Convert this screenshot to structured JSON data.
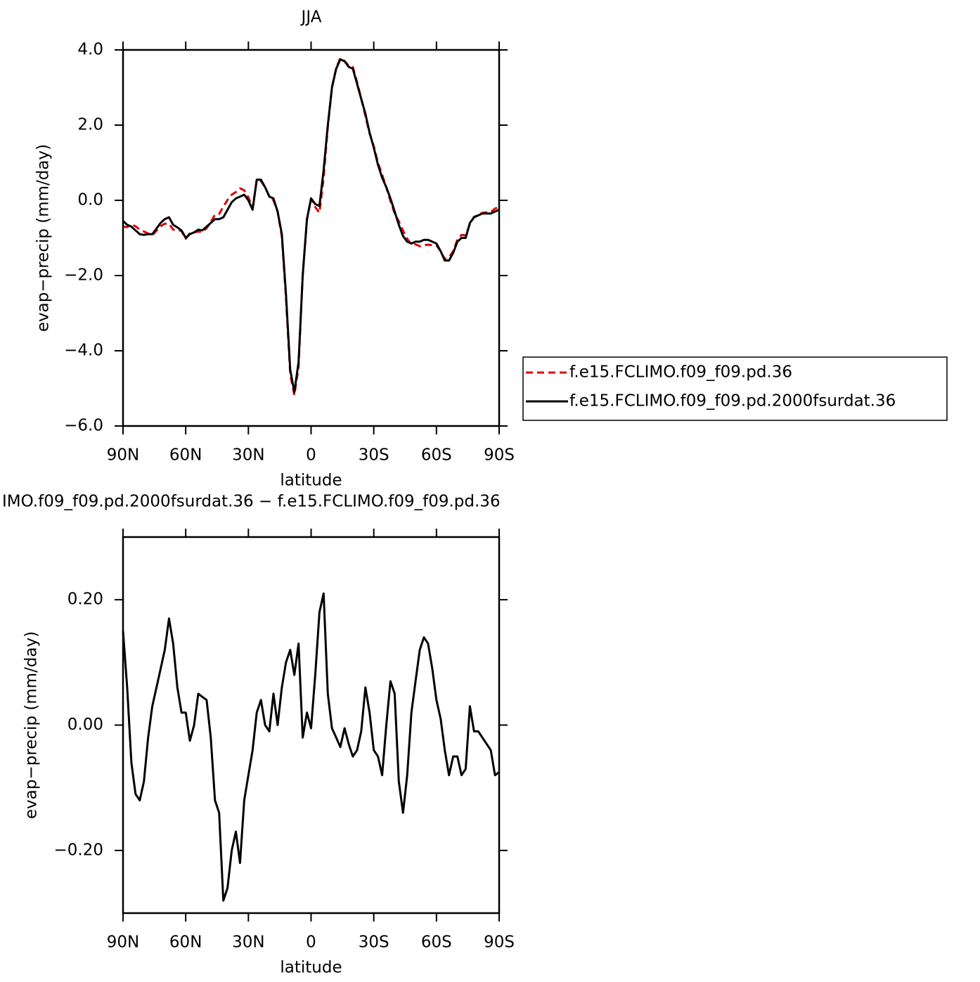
{
  "chart_data": [
    {
      "type": "line",
      "title": "JJA",
      "x_label": "latitude",
      "y_label": "evap−precip (mm/day)",
      "x": [
        90,
        88,
        86,
        84,
        82,
        80,
        78,
        76,
        74,
        72,
        70,
        68,
        66,
        64,
        62,
        60,
        58,
        56,
        54,
        52,
        50,
        48,
        46,
        44,
        42,
        40,
        38,
        36,
        34,
        32,
        30,
        28,
        26,
        24,
        22,
        20,
        18,
        16,
        14,
        12,
        10,
        8,
        6,
        4,
        2,
        0,
        -2,
        -4,
        -6,
        -8,
        -10,
        -12,
        -14,
        -16,
        -18,
        -20,
        -22,
        -24,
        -26,
        -28,
        -30,
        -32,
        -34,
        -36,
        -38,
        -40,
        -42,
        -44,
        -46,
        -48,
        -50,
        -52,
        -54,
        -56,
        -58,
        -60,
        -62,
        -64,
        -66,
        -68,
        -70,
        -72,
        -74,
        -76,
        -78,
        -80,
        -82,
        -84,
        -86,
        -88,
        -90
      ],
      "xlim": [
        90,
        -90
      ],
      "xticks": [
        {
          "value": 90,
          "label": "90N"
        },
        {
          "value": 60,
          "label": "60N"
        },
        {
          "value": 30,
          "label": "30N"
        },
        0,
        {
          "value": -30,
          "label": "30S"
        },
        {
          "value": -60,
          "label": "60S"
        },
        {
          "value": -90,
          "label": "90S"
        }
      ],
      "ylim": [
        -6,
        4
      ],
      "yticks": [
        {
          "value": -6,
          "label": "−6.0"
        },
        {
          "value": -4,
          "label": "−4.0"
        },
        {
          "value": -2,
          "label": "−2.0"
        },
        {
          "value": 0,
          "label": "0.0"
        },
        {
          "value": 2,
          "label": "2.0"
        },
        {
          "value": 4,
          "label": "4.0"
        }
      ],
      "legend": "right",
      "series": [
        {
          "name": "f.e15.FCLIMO.f09_f09.pd.36",
          "color": "#e00000",
          "dashed": true,
          "values": [
            -0.7,
            -0.71,
            -0.64,
            -0.69,
            -0.78,
            -0.83,
            -0.88,
            -0.93,
            -0.81,
            -0.69,
            -0.62,
            -0.62,
            -0.78,
            -0.78,
            -0.82,
            -1.02,
            -0.875,
            -0.85,
            -0.83,
            -0.845,
            -0.74,
            -0.58,
            -0.38,
            -0.36,
            -0.17,
            0.01,
            0.15,
            0.22,
            0.32,
            0.27,
            0.08,
            -0.21,
            0.53,
            0.51,
            0.35,
            0.11,
            0.0,
            -0.3,
            -0.96,
            -2.6,
            -4.62,
            -5.18,
            -4.43,
            -1.98,
            -0.52,
            0.055,
            -0.18,
            -0.33,
            0.59,
            1.95,
            3.005,
            3.52,
            3.785,
            3.705,
            3.58,
            3.55,
            3.14,
            2.71,
            2.24,
            1.78,
            1.44,
            1.0,
            0.68,
            0.35,
            -0.02,
            -0.35,
            -0.56,
            -0.81,
            -1.02,
            -1.17,
            -1.17,
            -1.22,
            -1.19,
            -1.18,
            -1.19,
            -1.19,
            -1.36,
            -1.56,
            -1.52,
            -1.35,
            -1.05,
            -0.92,
            -0.93,
            -0.63,
            -0.44,
            -0.39,
            -0.33,
            -0.32,
            -0.31,
            -0.22,
            -0.175
          ]
        },
        {
          "name": "f.e15.FCLIMO.f09_f09.pd.2000fsurdat.36",
          "color": "#000000",
          "dashed": false,
          "values": [
            -0.55,
            -0.65,
            -0.7,
            -0.8,
            -0.9,
            -0.92,
            -0.9,
            -0.9,
            -0.75,
            -0.6,
            -0.5,
            -0.45,
            -0.65,
            -0.72,
            -0.8,
            -1.0,
            -0.9,
            -0.85,
            -0.78,
            -0.8,
            -0.7,
            -0.6,
            -0.5,
            -0.5,
            -0.45,
            -0.25,
            -0.05,
            0.05,
            0.1,
            0.15,
            0.0,
            -0.25,
            0.55,
            0.55,
            0.35,
            0.1,
            0.05,
            -0.3,
            -0.9,
            -2.5,
            -4.5,
            -5.1,
            -4.3,
            -2.0,
            -0.5,
            0.05,
            -0.1,
            -0.15,
            0.8,
            2.0,
            3.0,
            3.5,
            3.75,
            3.7,
            3.55,
            3.5,
            3.1,
            2.7,
            2.3,
            1.8,
            1.4,
            0.95,
            0.6,
            0.35,
            0.05,
            -0.3,
            -0.65,
            -0.95,
            -1.1,
            -1.15,
            -1.1,
            -1.1,
            -1.05,
            -1.05,
            -1.1,
            -1.15,
            -1.35,
            -1.6,
            -1.6,
            -1.4,
            -1.1,
            -1.0,
            -1.0,
            -0.6,
            -0.45,
            -0.4,
            -0.35,
            -0.35,
            -0.35,
            -0.3,
            -0.25
          ]
        }
      ]
    },
    {
      "type": "line",
      "title": "IMO.f09_f09.pd.2000fsurdat.36 − f.e15.FCLIMO.f09_f09.pd.36",
      "x_label": "latitude",
      "y_label": "evap−precip (mm/day)",
      "x": [
        90,
        88,
        86,
        84,
        82,
        80,
        78,
        76,
        74,
        72,
        70,
        68,
        66,
        64,
        62,
        60,
        58,
        56,
        54,
        52,
        50,
        48,
        46,
        44,
        42,
        40,
        38,
        36,
        34,
        32,
        30,
        28,
        26,
        24,
        22,
        20,
        18,
        16,
        14,
        12,
        10,
        8,
        6,
        4,
        2,
        0,
        -2,
        -4,
        -6,
        -8,
        -10,
        -12,
        -14,
        -16,
        -18,
        -20,
        -22,
        -24,
        -26,
        -28,
        -30,
        -32,
        -34,
        -36,
        -38,
        -40,
        -42,
        -44,
        -46,
        -48,
        -50,
        -52,
        -54,
        -56,
        -58,
        -60,
        -62,
        -64,
        -66,
        -68,
        -70,
        -72,
        -74,
        -76,
        -78,
        -80,
        -82,
        -84,
        -86,
        -88,
        -90
      ],
      "xlim": [
        90,
        -90
      ],
      "xticks": [
        {
          "value": 90,
          "label": "90N"
        },
        {
          "value": 60,
          "label": "60N"
        },
        {
          "value": 30,
          "label": "30N"
        },
        0,
        {
          "value": -30,
          "label": "30S"
        },
        {
          "value": -60,
          "label": "60S"
        },
        {
          "value": -90,
          "label": "90S"
        }
      ],
      "ylim": [
        -0.3,
        0.3
      ],
      "yticks": [
        {
          "value": -0.2,
          "label": "−0.20"
        },
        {
          "value": 0,
          "label": "0.00"
        },
        {
          "value": 0.2,
          "label": "0.20"
        }
      ],
      "series": [
        {
          "color": "#000000",
          "dashed": false,
          "values": [
            0.15,
            0.06,
            -0.06,
            -0.11,
            -0.12,
            -0.09,
            -0.02,
            0.03,
            0.06,
            0.09,
            0.12,
            0.17,
            0.13,
            0.06,
            0.02,
            0.02,
            -0.025,
            0.0,
            0.05,
            0.045,
            0.04,
            -0.02,
            -0.12,
            -0.14,
            -0.28,
            -0.26,
            -0.2,
            -0.17,
            -0.22,
            -0.12,
            -0.08,
            -0.04,
            0.02,
            0.04,
            0.0,
            -0.01,
            0.05,
            0.0,
            0.06,
            0.1,
            0.12,
            0.08,
            0.13,
            -0.02,
            0.02,
            -0.005,
            0.08,
            0.18,
            0.21,
            0.05,
            -0.005,
            -0.02,
            -0.035,
            -0.005,
            -0.03,
            -0.05,
            -0.04,
            -0.01,
            0.06,
            0.02,
            -0.04,
            -0.05,
            -0.08,
            0.0,
            0.07,
            0.05,
            -0.09,
            -0.14,
            -0.08,
            0.02,
            0.07,
            0.12,
            0.14,
            0.13,
            0.09,
            0.04,
            0.01,
            -0.04,
            -0.08,
            -0.05,
            -0.05,
            -0.08,
            -0.07,
            0.03,
            -0.01,
            -0.01,
            -0.02,
            -0.03,
            -0.04,
            -0.08,
            -0.075
          ]
        }
      ]
    }
  ]
}
